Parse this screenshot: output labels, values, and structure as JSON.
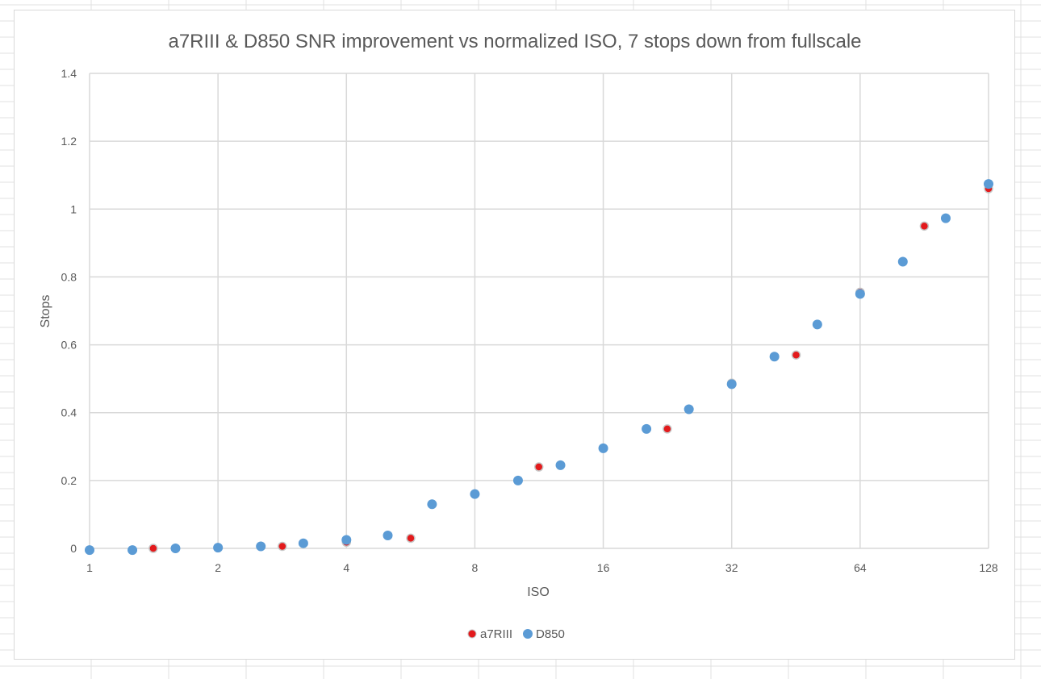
{
  "colors": {
    "a7RIII": "#e31a1c",
    "D850": "#5b9bd5",
    "gridline": "#d9d9d9",
    "text": "#595959"
  },
  "chart_data": {
    "type": "scatter",
    "title": "a7RIII & D850 SNR improvement vs normalized ISO, 7 stops down from fullscale",
    "xlabel": "ISO",
    "ylabel": "Stops",
    "xscale": "log2",
    "xlim": [
      1,
      128
    ],
    "ylim": [
      0,
      1.4
    ],
    "xticks": [
      "1",
      "2",
      "4",
      "8",
      "16",
      "32",
      "64",
      "128"
    ],
    "yticks": [
      "0",
      "0.2",
      "0.4",
      "0.6",
      "0.8",
      "1",
      "1.2",
      "1.4"
    ],
    "grid": true,
    "legend": "bottom",
    "series": [
      {
        "name": "a7RIII",
        "x": [
          1,
          1.41,
          2,
          2.83,
          4,
          5.66,
          8,
          11.3,
          16,
          22.6,
          32,
          45.3,
          64,
          90.5,
          128
        ],
        "y": [
          -0.005,
          0.0,
          0.002,
          0.006,
          0.018,
          0.03,
          0.16,
          0.24,
          0.295,
          0.352,
          0.487,
          0.57,
          0.755,
          0.95,
          1.06
        ]
      },
      {
        "name": "D850",
        "x": [
          1,
          1.26,
          1.59,
          2,
          2.52,
          3.17,
          4,
          5,
          6.35,
          8,
          10.1,
          12.7,
          16,
          20.2,
          25.4,
          32,
          40.3,
          50.8,
          64,
          80.6,
          101.6,
          128
        ],
        "y": [
          -0.005,
          -0.005,
          0.0,
          0.002,
          0.006,
          0.015,
          0.025,
          0.038,
          0.13,
          0.16,
          0.2,
          0.245,
          0.295,
          0.352,
          0.41,
          0.484,
          0.565,
          0.66,
          0.75,
          0.845,
          0.973,
          1.074
        ]
      }
    ]
  }
}
